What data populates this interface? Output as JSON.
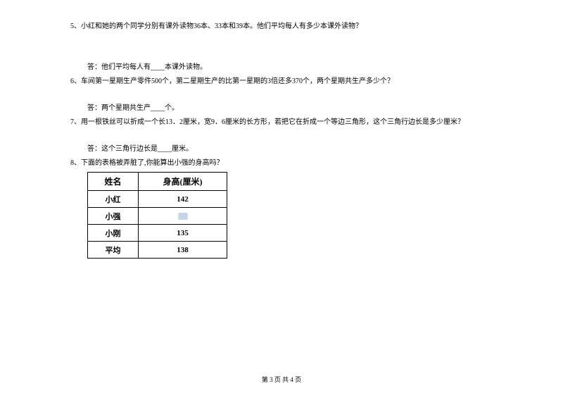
{
  "questions": {
    "q5": {
      "text": "5、小红和她的两个同学分别有课外读物36本、33本和39本。他们平均每人有多少本课外读物？",
      "answer": "答：他们平均每人有____本课外读物。"
    },
    "q6": {
      "text": "6、车间第一星期生产零件500个，第二星期生产的比第一星期的3倍还多370个，两个星期共生产多少个？",
      "answer": "答：两个星期共生产____个。"
    },
    "q7": {
      "text": "7、用一根铁丝可以折成一个长13．2厘米，宽9．6厘米的长方形，若把它在折成一个等边三角形，这个三角行边长是多少厘米？",
      "answer": "答：这个三角行边长是____厘米。"
    },
    "q8": {
      "text": "8、下面的表格被弄脏了,你能算出小强的身高吗？"
    }
  },
  "table": {
    "headers": {
      "name": "姓名",
      "height": "身高(厘米)"
    },
    "rows": [
      {
        "name": "小红",
        "height": "142"
      },
      {
        "name": "小强",
        "height": ""
      },
      {
        "name": "小刚",
        "height": "135"
      },
      {
        "name": "平均",
        "height": "138"
      }
    ],
    "col_widths": {
      "name": 72,
      "height": 126
    },
    "border_color": "#000000",
    "smudge_color": "#c8d4e8"
  },
  "footer": "第 3 页 共 4 页",
  "styling": {
    "background_color": "#ffffff",
    "text_color": "#000000",
    "body_font_size": 10,
    "table_header_font_size": 12,
    "table_cell_font_size": 11,
    "font_family": "SimSun"
  }
}
